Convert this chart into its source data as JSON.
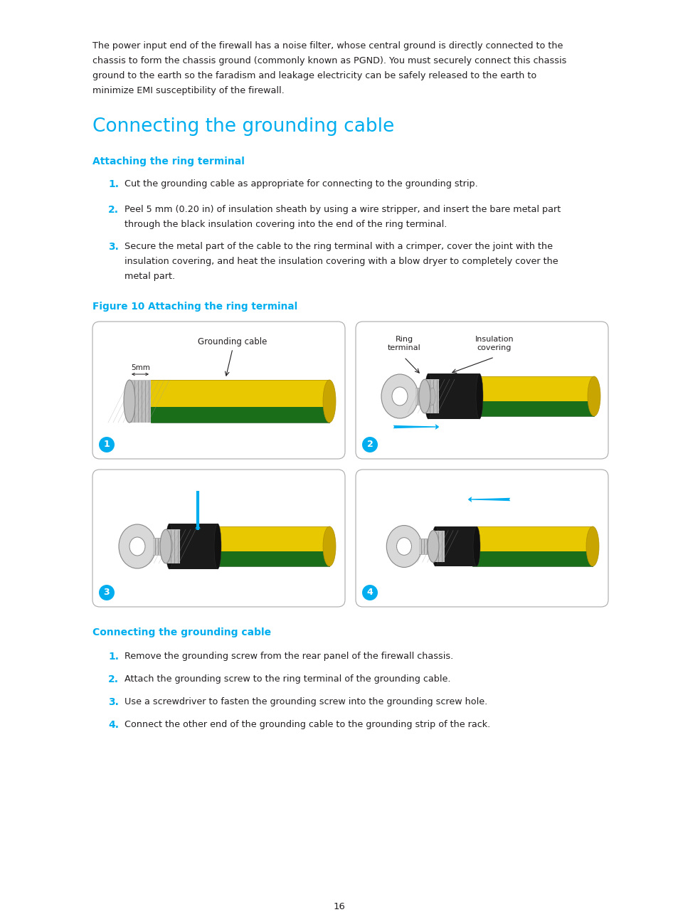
{
  "bg_color": "#ffffff",
  "text_color": "#231f20",
  "cyan_color": "#00aeef",
  "page_number": "16",
  "intro_lines": [
    "The power input end of the firewall has a noise filter, whose central ground is directly connected to the",
    "chassis to form the chassis ground (commonly known as PGND). You must securely connect this chassis",
    "ground to the earth so the faradism and leakage electricity can be safely released to the earth to",
    "minimize EMI susceptibility of the firewall."
  ],
  "section_title": "Connecting the grounding cable",
  "subsection1_title": "Attaching the ring terminal",
  "attach_step1": "Cut the grounding cable as appropriate for connecting to the grounding strip.",
  "attach_step2a": "Peel 5 mm (0.20 in) of insulation sheath by using a wire stripper, and insert the bare metal part",
  "attach_step2b": "through the black insulation covering into the end of the ring terminal.",
  "attach_step3a": "Secure the metal part of the cable to the ring terminal with a crimper, cover the joint with the",
  "attach_step3b": "insulation covering, and heat the insulation covering with a blow dryer to completely cover the",
  "attach_step3c": "metal part.",
  "figure_caption": "Figure 10 Attaching the ring terminal",
  "subsection2_title": "Connecting the grounding cable",
  "connect_step1": "Remove the grounding screw from the rear panel of the firewall chassis.",
  "connect_step2": "Attach the grounding screw to the ring terminal of the grounding cable.",
  "connect_step3": "Use a screwdriver to fasten the grounding screw into the grounding screw hole.",
  "connect_step4": "Connect the other end of the grounding cable to the grounding strip of the rack.",
  "label_grounding_cable": "Grounding cable",
  "label_5mm": "5mm",
  "label_ring_terminal": "Ring\nterminal",
  "label_insulation_covering": "Insulation\ncovering",
  "cable_yellow": "#e8c800",
  "cable_green": "#1a6e1a",
  "cable_yellow_dark": "#b09000",
  "cable_green_dark": "#0a4a0a",
  "cable_end_color": "#c8a500",
  "wire_color": "#c0c0c0",
  "wire_dark": "#808080",
  "black_cover": "#1a1a1a",
  "ring_gray": "#c8c8c8",
  "ring_outline": "#888888",
  "panel_border": "#aaaaaa"
}
